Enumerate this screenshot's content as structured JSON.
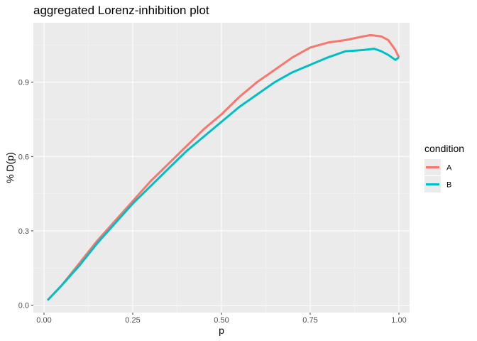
{
  "chart_data": {
    "type": "line",
    "title": "aggregated  Lorenz-inhibition plot",
    "xlabel": "p",
    "ylabel": "% D(p)",
    "xlim": [
      -0.03,
      1.03
    ],
    "ylim": [
      -0.03,
      1.14
    ],
    "xticks": [
      0.0,
      0.25,
      0.5,
      0.75,
      1.0
    ],
    "xtick_labels": [
      "0.00",
      "0.25",
      "0.50",
      "0.75",
      "1.00"
    ],
    "yticks": [
      0.0,
      0.3,
      0.6,
      0.9
    ],
    "ytick_labels": [
      "0.0",
      "0.3",
      "0.6",
      "0.9"
    ],
    "grid": true,
    "legend": {
      "title": "condition",
      "position": "right"
    },
    "series": [
      {
        "name": "A",
        "color": "#F8766D",
        "x": [
          0.01,
          0.05,
          0.1,
          0.15,
          0.2,
          0.25,
          0.3,
          0.35,
          0.4,
          0.45,
          0.5,
          0.55,
          0.6,
          0.65,
          0.7,
          0.75,
          0.8,
          0.85,
          0.9,
          0.92,
          0.95,
          0.97,
          0.99,
          1.0
        ],
        "y": [
          0.02,
          0.08,
          0.17,
          0.26,
          0.34,
          0.42,
          0.5,
          0.57,
          0.64,
          0.71,
          0.77,
          0.84,
          0.9,
          0.95,
          1.0,
          1.04,
          1.06,
          1.07,
          1.085,
          1.09,
          1.085,
          1.07,
          1.03,
          1.0
        ]
      },
      {
        "name": "B",
        "color": "#00BFC4",
        "x": [
          0.01,
          0.05,
          0.1,
          0.15,
          0.2,
          0.25,
          0.3,
          0.35,
          0.4,
          0.45,
          0.5,
          0.55,
          0.6,
          0.65,
          0.7,
          0.75,
          0.8,
          0.85,
          0.9,
          0.93,
          0.95,
          0.97,
          0.99,
          1.0
        ],
        "y": [
          0.02,
          0.08,
          0.16,
          0.25,
          0.33,
          0.41,
          0.48,
          0.55,
          0.62,
          0.68,
          0.74,
          0.8,
          0.85,
          0.9,
          0.94,
          0.97,
          1.0,
          1.025,
          1.03,
          1.035,
          1.025,
          1.01,
          0.99,
          1.0
        ]
      }
    ]
  }
}
